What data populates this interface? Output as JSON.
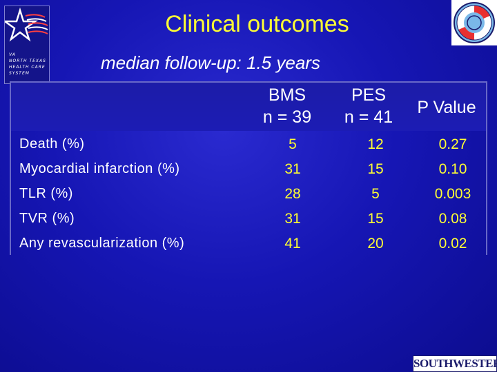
{
  "logo": {
    "lines": [
      "VA",
      "NORTH TEXAS",
      "HEALTH CARE",
      "SYSTEM"
    ]
  },
  "title": "Clinical outcomes",
  "subtitle": "median follow-up: 1.5 years",
  "table": {
    "columns": [
      {
        "line1": "BMS",
        "line2": "n = 39"
      },
      {
        "line1": "PES",
        "line2": "n = 41"
      },
      {
        "line1": "P Value",
        "line2": ""
      }
    ],
    "rows": [
      {
        "label": "Death (%)",
        "bms": "5",
        "pes": "12",
        "p": "0.27"
      },
      {
        "label": "Myocardial infarction (%)",
        "bms": "31",
        "pes": "15",
        "p": "0.10"
      },
      {
        "label": "TLR (%)",
        "bms": "28",
        "pes": "5",
        "p": "0.003"
      },
      {
        "label": "TVR (%)",
        "bms": "31",
        "pes": "15",
        "p": "0.08"
      },
      {
        "label": "Any revascularization (%)",
        "bms": "41",
        "pes": "20",
        "p": "0.02"
      }
    ]
  },
  "footer_logo": "SOUTHWESTERN",
  "colors": {
    "background": "#1616b4",
    "title": "#ffff33",
    "values": "#ffff33",
    "text": "#ffffff"
  }
}
